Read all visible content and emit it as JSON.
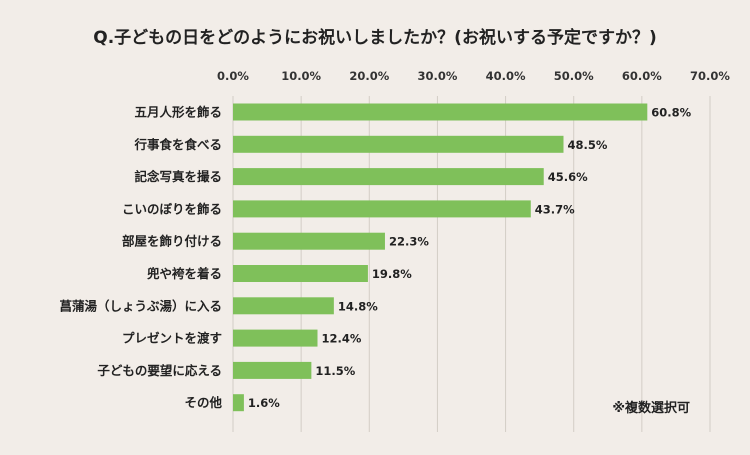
{
  "chart_data": {
    "type": "bar",
    "orientation": "horizontal",
    "title": "Q.子どもの日をどのようにお祝いしましたか？(お祝いする予定ですか？)",
    "categories": [
      "五月人形を飾る",
      "行事食を食べる",
      "記念写真を撮る",
      "こいのぼりを飾る",
      "部屋を飾り付ける",
      "兜や袴を着る",
      "菖蒲湯（しょうぶ湯）に入る",
      "プレゼントを渡す",
      "子どもの要望に応える",
      "その他"
    ],
    "values": [
      60.8,
      48.5,
      45.6,
      43.7,
      22.3,
      19.8,
      14.8,
      12.4,
      11.5,
      1.6
    ],
    "value_labels": [
      "60.8%",
      "48.5%",
      "45.6%",
      "43.7%",
      "22.3%",
      "19.8%",
      "14.8%",
      "12.4%",
      "11.5%",
      "1.6%"
    ],
    "xlim": [
      0,
      70
    ],
    "x_ticks": [
      0,
      10,
      20,
      30,
      40,
      50,
      60,
      70
    ],
    "x_tick_labels": [
      "0.0%",
      "10.0%",
      "20.0%",
      "30.0%",
      "40.0%",
      "50.0%",
      "60.0%",
      "70.0%"
    ],
    "x_axis_position": "top",
    "grid": true,
    "bar_color": "#7fc05a",
    "annotation": "※複数選択可"
  }
}
